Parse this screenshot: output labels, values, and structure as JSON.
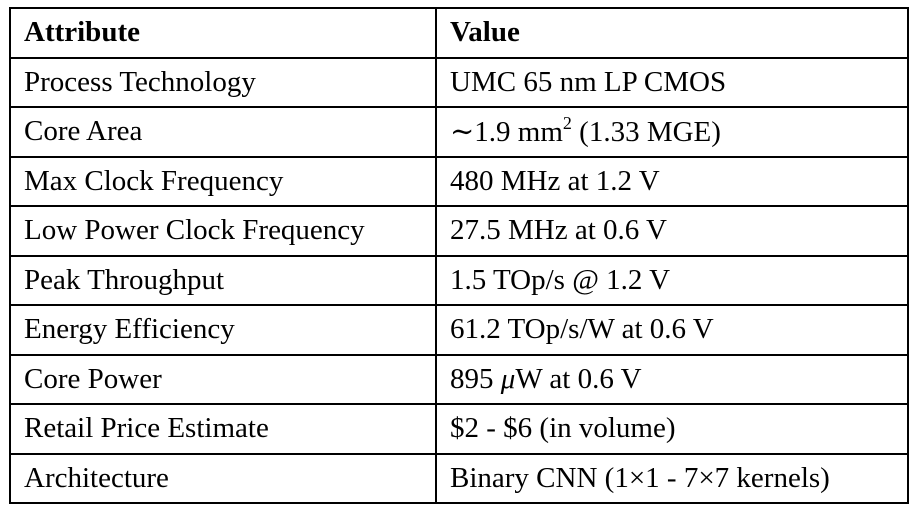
{
  "table": {
    "headers": {
      "attribute": "Attribute",
      "value": "Value"
    },
    "rows": [
      {
        "attribute": "Process Technology",
        "value": "UMC 65 nm LP CMOS"
      },
      {
        "attribute": "Core Area",
        "value_prefix": "∼1.9 mm",
        "value_sup": "2",
        "value_suffix": " (1.33 MGE)"
      },
      {
        "attribute": "Max Clock Frequency",
        "value": "480 MHz at 1.2 V"
      },
      {
        "attribute": "Low Power Clock Frequency",
        "value": "27.5 MHz at 0.6 V"
      },
      {
        "attribute": "Peak Throughput",
        "value": "1.5 TOp/s @ 1.2 V"
      },
      {
        "attribute": "Energy Efficiency",
        "value": "61.2 TOp/s/W at 0.6 V"
      },
      {
        "attribute": "Core Power",
        "value_prefix": "895 ",
        "value_mu": "μ",
        "value_suffix": "W at 0.6 V"
      },
      {
        "attribute": "Retail Price Estimate",
        "value": "$2 - $6 (in volume)"
      },
      {
        "attribute": "Architecture",
        "value": "Binary CNN (1×1 - 7×7 kernels)"
      }
    ]
  }
}
